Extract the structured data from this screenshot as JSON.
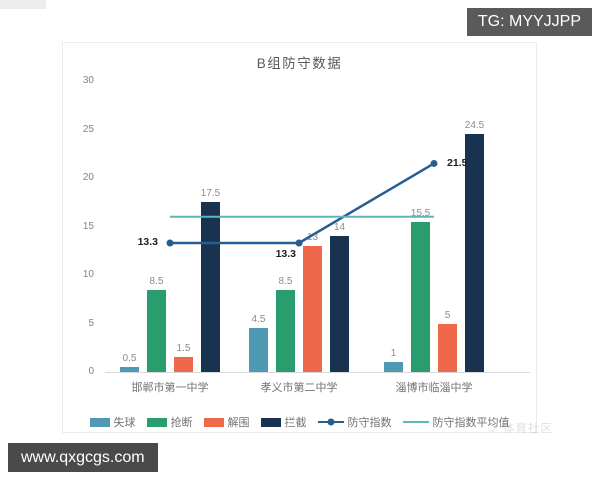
{
  "overlays": {
    "tg_badge": "TG: MYYJJPP",
    "site_badge": "www.qxgcgs.com",
    "watermark": "☺ 体育社区"
  },
  "chart_data": {
    "type": "bar",
    "title": "B组防守数据",
    "xlabel": "",
    "ylabel": "",
    "ylim": [
      0,
      30
    ],
    "yticks": [
      0,
      5,
      10,
      15,
      20,
      25,
      30
    ],
    "grid": false,
    "legend_position": "bottom",
    "categories": [
      "邯郸市第一中学",
      "孝义市第二中学",
      "淄博市临淄中学"
    ],
    "series": [
      {
        "name": "失球",
        "type": "bar",
        "color": "#4f99b5",
        "data_labels": true,
        "values": [
          0.5,
          4.5,
          1
        ]
      },
      {
        "name": "抢断",
        "type": "bar",
        "color": "#2a9d6e",
        "data_labels": true,
        "values": [
          8.5,
          8.5,
          15.5
        ]
      },
      {
        "name": "解围",
        "type": "bar",
        "color": "#f0684a",
        "data_labels": true,
        "values": [
          1.5,
          13,
          5
        ]
      },
      {
        "name": "拦截",
        "type": "bar",
        "color": "#17334f",
        "data_labels": true,
        "values": [
          17.5,
          14,
          24.5
        ]
      },
      {
        "name": "防守指数",
        "type": "line",
        "color": "#255e91",
        "markers": true,
        "data_labels": true,
        "values": [
          13.3,
          13.3,
          21.5
        ]
      },
      {
        "name": "防守指数平均值",
        "type": "line",
        "color": "#5fb5b8",
        "markers": false,
        "data_labels": false,
        "values": [
          16,
          16,
          16
        ]
      }
    ]
  }
}
